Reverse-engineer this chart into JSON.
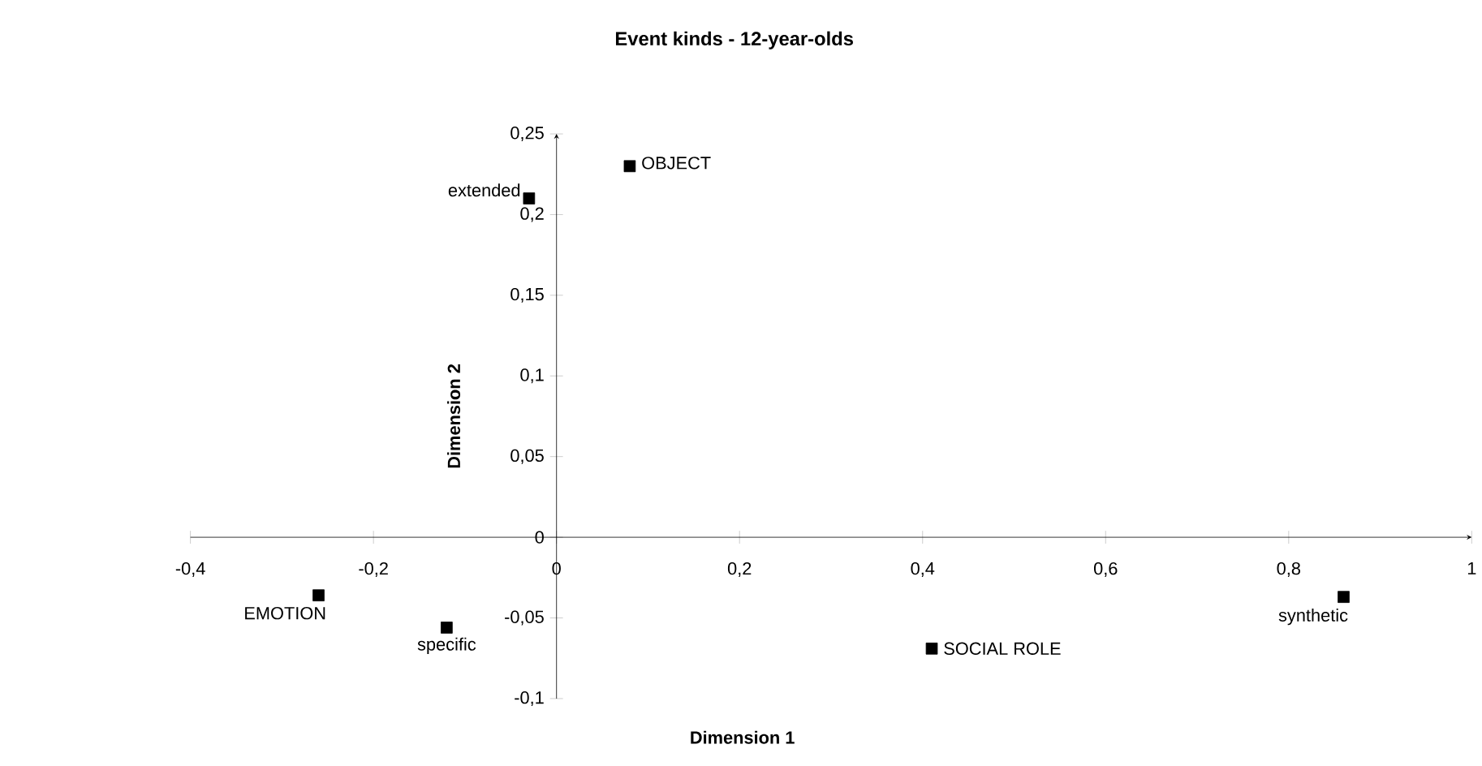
{
  "chart_data": {
    "type": "scatter",
    "title": "Event kinds - 12-year-olds",
    "xlabel": "Dimension 1",
    "ylabel": "Dimension 2",
    "x": [
      -0.03,
      0.08,
      -0.26,
      -0.12,
      0.41,
      0.86
    ],
    "series": [
      {
        "color": "#000000",
        "values": [
          0.21,
          0.23,
          -0.036,
          -0.056,
          -0.069,
          -0.037
        ]
      }
    ],
    "marker": "square",
    "xlim": [
      -0.4,
      1
    ],
    "ylim": [
      -0.1,
      0.25
    ],
    "xticks": [
      {
        "value": -0.4,
        "label": "-0,4"
      },
      {
        "value": -0.2,
        "label": "-0,2"
      },
      0,
      {
        "value": 0.2,
        "label": "0,2"
      },
      {
        "value": 0.4,
        "label": "0,4"
      },
      {
        "value": 0.6,
        "label": "0,6"
      },
      {
        "value": 0.8,
        "label": "0,8"
      },
      1
    ],
    "yticks": [
      {
        "value": -0.1,
        "label": "-0,1"
      },
      {
        "value": -0.05,
        "label": "-0,05"
      },
      0,
      {
        "value": 0.05,
        "label": "0,05"
      },
      {
        "value": 0.1,
        "label": "0,1"
      },
      {
        "value": 0.15,
        "label": "0,15"
      },
      {
        "value": 0.2,
        "label": "0,2"
      },
      {
        "value": 0.25,
        "label": "0,25"
      }
    ],
    "annotations": [
      {
        "text": "extended",
        "x": -0.03,
        "y": 0.21
      },
      {
        "text": "OBJECT",
        "x": 0.08,
        "y": 0.23
      },
      {
        "text": "EMOTION",
        "x": -0.26,
        "y": -0.036
      },
      {
        "text": "specific",
        "x": -0.12,
        "y": -0.056
      },
      {
        "text": "SOCIAL ROLE",
        "x": 0.41,
        "y": -0.069
      },
      {
        "text": "synthetic",
        "x": 0.86,
        "y": -0.037
      }
    ]
  }
}
